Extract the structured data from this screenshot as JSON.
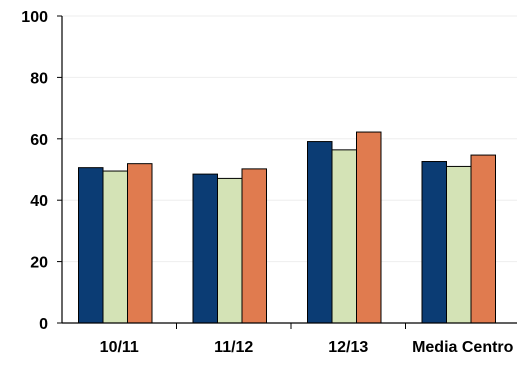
{
  "chart_data": {
    "type": "bar",
    "categories": [
      "10/11",
      "11/12",
      "12/13",
      "Media Centro"
    ],
    "series": [
      {
        "values": [
          50.6,
          48.5,
          59.1,
          52.6
        ]
      },
      {
        "values": [
          49.5,
          47.1,
          56.4,
          51.0
        ]
      },
      {
        "values": [
          51.9,
          50.2,
          62.2,
          54.7
        ]
      }
    ],
    "ylim": [
      0,
      100
    ],
    "yticks": [
      0,
      20,
      40,
      60,
      80,
      100
    ],
    "grid": true,
    "legend": "none",
    "title": "",
    "xlabel": "",
    "ylabel": "",
    "colors": {
      "series": [
        "#0b3c74",
        "#d4e3b6",
        "#e07b4f"
      ],
      "bar_stroke": "#000000",
      "axis": "#000000",
      "grid": "#eeeeee"
    }
  }
}
